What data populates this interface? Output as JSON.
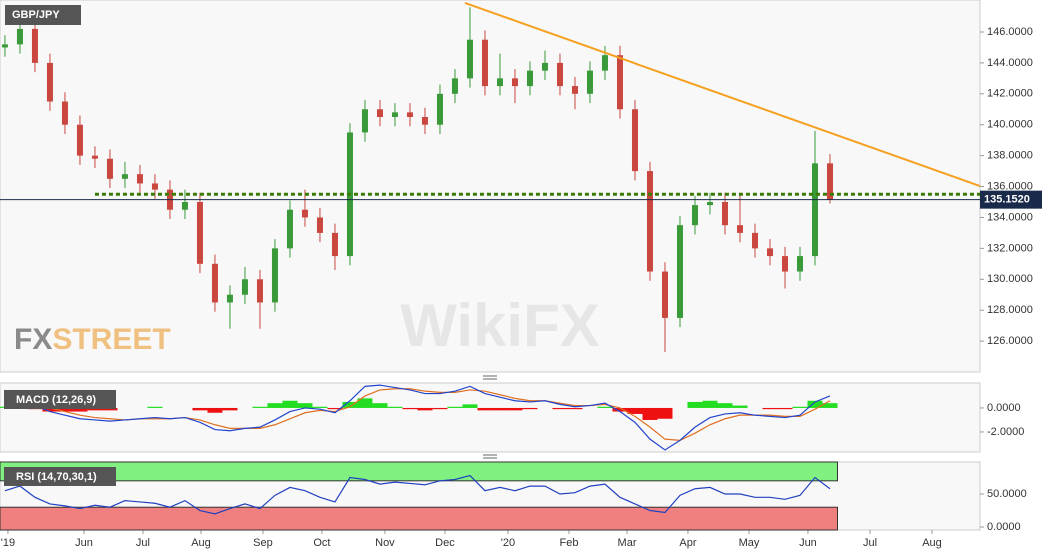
{
  "chart_data": [
    {
      "type": "candlestick",
      "title": "GBP/JPY",
      "open": [
        145.0,
        145.2,
        146.2,
        144.0,
        141.5,
        140.0,
        138.0,
        137.8,
        136.5,
        136.8,
        136.2,
        135.8,
        134.5,
        135.0,
        131.0,
        128.5,
        129.0,
        130.0,
        128.5,
        132.0,
        134.5,
        134.0,
        133.0,
        131.5,
        139.5,
        141.0,
        140.5,
        140.8,
        140.5,
        140.0,
        142.0,
        143.0,
        145.5,
        142.5,
        143.0,
        142.5,
        143.5,
        144.0,
        142.5,
        142.0,
        143.5,
        144.5,
        141.0,
        137.0,
        130.5,
        127.5,
        133.5,
        134.8,
        135.0,
        133.5,
        133.0,
        132.0,
        131.5,
        130.5,
        131.5,
        137.5
      ],
      "high": [
        145.8,
        146.8,
        146.8,
        144.6,
        142.1,
        140.6,
        138.6,
        138.4,
        137.6,
        137.4,
        136.8,
        136.4,
        135.8,
        135.6,
        131.6,
        129.6,
        130.8,
        130.6,
        132.6,
        135.1,
        135.8,
        134.6,
        133.6,
        140.1,
        141.6,
        141.6,
        141.4,
        141.4,
        141.1,
        142.6,
        143.6,
        147.6,
        146.1,
        144.6,
        143.6,
        144.1,
        144.8,
        144.6,
        143.1,
        144.1,
        145.1,
        145.1,
        141.6,
        137.6,
        131.1,
        134.1,
        135.4,
        135.6,
        135.6,
        135.6,
        133.6,
        132.6,
        132.1,
        132.1,
        139.6,
        138.1
      ],
      "low": [
        144.4,
        144.6,
        143.4,
        140.9,
        139.4,
        137.4,
        137.2,
        135.9,
        135.9,
        135.6,
        135.2,
        133.9,
        133.9,
        130.4,
        127.9,
        126.8,
        128.4,
        126.8,
        127.9,
        131.4,
        133.4,
        132.4,
        130.6,
        130.9,
        138.9,
        139.9,
        139.9,
        139.9,
        139.4,
        139.4,
        141.4,
        142.4,
        141.9,
        141.9,
        141.4,
        141.9,
        142.9,
        141.9,
        141.0,
        141.4,
        142.9,
        140.4,
        136.4,
        129.9,
        125.3,
        126.9,
        132.9,
        134.2,
        132.9,
        132.4,
        131.4,
        130.9,
        129.4,
        129.9,
        130.9,
        134.9
      ],
      "close": [
        145.2,
        146.2,
        144.0,
        141.5,
        140.0,
        138.0,
        137.8,
        136.5,
        136.8,
        136.2,
        135.8,
        134.5,
        135.0,
        131.0,
        128.5,
        129.0,
        130.0,
        128.5,
        132.0,
        134.5,
        134.0,
        133.0,
        131.5,
        139.5,
        141.0,
        140.5,
        140.8,
        140.5,
        140.0,
        142.0,
        143.0,
        145.5,
        142.5,
        143.0,
        142.5,
        143.5,
        144.0,
        142.5,
        142.0,
        143.5,
        144.5,
        141.0,
        137.0,
        130.5,
        127.5,
        133.5,
        134.8,
        135.0,
        133.5,
        133.0,
        132.0,
        131.5,
        130.5,
        131.5,
        137.5,
        135.15
      ],
      "up_color": "#3a9a3a",
      "down_color": "#c9473f",
      "ylim": [
        124.0,
        148.07
      ],
      "yticks": [
        {
          "value": 126,
          "label": "126.0000"
        },
        {
          "value": 128,
          "label": "128.0000"
        },
        {
          "value": 130,
          "label": "130.0000"
        },
        {
          "value": 132,
          "label": "132.0000"
        },
        {
          "value": 134,
          "label": "134.0000"
        },
        {
          "value": 136,
          "label": "136.0000"
        },
        {
          "value": 138,
          "label": "138.0000"
        },
        {
          "value": 140,
          "label": "140.0000"
        },
        {
          "value": 142,
          "label": "142.0000"
        },
        {
          "value": 144,
          "label": "144.0000"
        },
        {
          "value": 146,
          "label": "146.0000"
        }
      ],
      "xlim": [
        -0.33,
        65
      ],
      "xticks": [
        {
          "value": 0.2,
          "label": "'19"
        },
        {
          "value": 5.27,
          "label": "Jun"
        },
        {
          "value": 9.2,
          "label": "Jul"
        },
        {
          "value": 13.07,
          "label": "Aug"
        },
        {
          "value": 17.2,
          "label": "Sep"
        },
        {
          "value": 21.13,
          "label": "Oct"
        },
        {
          "value": 25.33,
          "label": "Nov"
        },
        {
          "value": 29.33,
          "label": "Dec"
        },
        {
          "value": 33.53,
          "label": "'20"
        },
        {
          "value": 37.6,
          "label": "Feb"
        },
        {
          "value": 41.47,
          "label": "Mar"
        },
        {
          "value": 45.53,
          "label": "Apr"
        },
        {
          "value": 49.6,
          "label": "May"
        },
        {
          "value": 53.53,
          "label": "Jun"
        },
        {
          "value": 57.67,
          "label": "Jul"
        },
        {
          "value": 61.8,
          "label": "Aug"
        }
      ],
      "trendline": {
        "x": [
          30.67,
          65
        ],
        "y": [
          147.88,
          136.03
        ],
        "color": "#f5a020"
      },
      "support": {
        "x": 6,
        "y": 135.5,
        "color": "#3a7a00"
      },
      "last_price": {
        "value": 135.152,
        "label": "135.1520"
      }
    },
    {
      "type": "macd",
      "title": "MACD (12,26,9)",
      "macd": [
        0.2,
        0.4,
        0.2,
        -0.3,
        -0.6,
        -0.9,
        -1.0,
        -1.1,
        -1.0,
        -0.9,
        -0.8,
        -0.9,
        -0.8,
        -1.2,
        -1.8,
        -1.9,
        -1.7,
        -1.6,
        -1.0,
        -0.3,
        0.0,
        -0.1,
        -0.4,
        0.6,
        1.8,
        1.9,
        1.7,
        1.5,
        1.2,
        1.2,
        1.4,
        1.8,
        1.2,
        0.9,
        0.6,
        0.5,
        0.6,
        0.3,
        0.1,
        0.2,
        0.4,
        -0.3,
        -1.2,
        -2.6,
        -3.5,
        -2.7,
        -1.6,
        -0.8,
        -0.5,
        -0.4,
        -0.6,
        -0.7,
        -0.8,
        -0.6,
        0.5,
        1.0
      ],
      "signal": [
        0.1,
        0.3,
        0.3,
        0.0,
        -0.3,
        -0.6,
        -0.8,
        -0.9,
        -1.0,
        -0.9,
        -0.9,
        -0.9,
        -0.8,
        -1.0,
        -1.4,
        -1.7,
        -1.7,
        -1.7,
        -1.4,
        -0.9,
        -0.4,
        -0.2,
        -0.3,
        0.1,
        1.0,
        1.5,
        1.6,
        1.6,
        1.4,
        1.3,
        1.3,
        1.5,
        1.4,
        1.1,
        0.8,
        0.6,
        0.6,
        0.4,
        0.2,
        0.2,
        0.3,
        0.0,
        -0.7,
        -1.6,
        -2.6,
        -2.7,
        -2.1,
        -1.4,
        -0.9,
        -0.6,
        -0.6,
        -0.6,
        -0.7,
        -0.7,
        -0.1,
        0.6
      ],
      "histogram": [
        0.1,
        0.1,
        -0.1,
        -0.3,
        -0.3,
        -0.3,
        -0.2,
        -0.2,
        0.0,
        0.0,
        0.1,
        0.0,
        0.0,
        -0.2,
        -0.4,
        -0.2,
        0.0,
        0.1,
        0.4,
        0.6,
        0.4,
        0.1,
        -0.1,
        0.5,
        0.8,
        0.4,
        0.1,
        -0.1,
        -0.2,
        -0.1,
        0.1,
        0.3,
        -0.2,
        -0.2,
        -0.2,
        -0.1,
        0.0,
        -0.1,
        -0.1,
        0.0,
        0.1,
        -0.3,
        -0.5,
        -1.0,
        -0.9,
        0.0,
        0.5,
        0.6,
        0.4,
        0.2,
        0.0,
        -0.1,
        -0.1,
        0.1,
        0.6,
        0.4
      ],
      "macd_color": "#2244cc",
      "signal_color": "#e07020",
      "up_color": "#22dd22",
      "down_color": "#ee1111",
      "ylim": [
        -3.67,
        2.08
      ],
      "yticks": [
        {
          "value": 0,
          "label": "0.0000"
        },
        {
          "value": -2,
          "label": "-2.0000"
        }
      ]
    },
    {
      "type": "rsi",
      "title": "RSI (14,70,30,1)",
      "values": [
        55,
        62,
        45,
        35,
        32,
        28,
        33,
        30,
        40,
        38,
        36,
        30,
        40,
        25,
        20,
        28,
        35,
        28,
        48,
        60,
        55,
        45,
        38,
        75,
        72,
        65,
        68,
        66,
        64,
        70,
        72,
        78,
        55,
        60,
        55,
        62,
        62,
        50,
        52,
        62,
        65,
        45,
        35,
        25,
        22,
        48,
        58,
        60,
        50,
        50,
        45,
        45,
        42,
        48,
        75,
        58
      ],
      "color": "#2040c0",
      "overbought": 70,
      "oversold": 30,
      "ylim": [
        -4.5,
        98.5
      ],
      "yticks": [
        {
          "value": 50,
          "label": "50.0000"
        },
        {
          "value": 0,
          "label": "0.0000"
        }
      ]
    }
  ],
  "watermarks": {
    "brand": [
      "FX",
      "STREET"
    ],
    "wikifx": "WikiFX"
  }
}
